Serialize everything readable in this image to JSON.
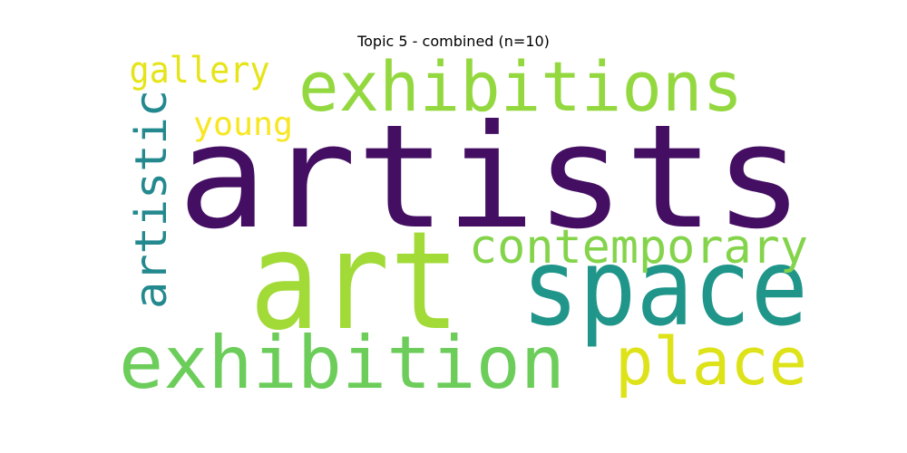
{
  "title": "Topic 5 - combined (n=10)",
  "words": [
    {
      "text": "artists",
      "color": "#440f62"
    },
    {
      "text": "art",
      "color": "#a2da37"
    },
    {
      "text": "space",
      "color": "#20958a"
    },
    {
      "text": "exhibitions",
      "color": "#94d840"
    },
    {
      "text": "exhibition",
      "color": "#6ccd5a"
    },
    {
      "text": "contemporary",
      "color": "#84d44b"
    },
    {
      "text": "place",
      "color": "#dde318"
    },
    {
      "text": "artistic",
      "color": "#23898e"
    },
    {
      "text": "gallery",
      "color": "#e5e419"
    },
    {
      "text": "young",
      "color": "#f8e621"
    }
  ]
}
